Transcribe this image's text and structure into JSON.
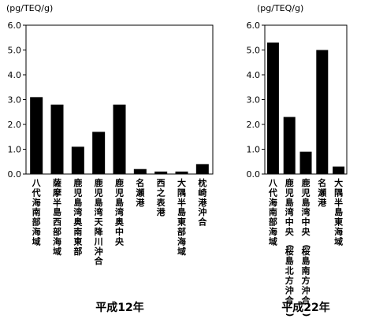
{
  "chart_data": [
    {
      "type": "bar",
      "unit_label": "(pg/TEQ/g)",
      "period_label": "平成12年",
      "ylim": [
        0,
        6
      ],
      "yticks": [
        "0.0",
        "1.0",
        "2.0",
        "3.0",
        "4.0",
        "5.0",
        "6.0"
      ],
      "categories": [
        "八代海南部海域",
        "薩摩半島西部海域",
        "鹿児島湾奥南東部",
        "鹿児島湾天降川沖合",
        "鹿児島湾奥中央",
        "名瀬港",
        "西之表港",
        "大隅半島東部海域",
        "枕崎港沖合"
      ],
      "values": [
        3.1,
        2.8,
        1.1,
        1.7,
        2.8,
        0.2,
        0.1,
        0.1,
        0.4
      ],
      "bar_color": "#000000",
      "grid": false
    },
    {
      "type": "bar",
      "unit_label": "(pg/TEQ/g)",
      "period_label": "平成22年",
      "ylim": [
        0,
        6
      ],
      "yticks": [
        "0.0",
        "1.0",
        "2.0",
        "3.0",
        "4.0",
        "5.0",
        "6.0"
      ],
      "categories": [
        "八代海南部海域",
        "鹿児島湾中央(桜島北方沖合)",
        "鹿児島湾中央(桜島南方沖合)",
        "名瀬港",
        "大隅半島東海域"
      ],
      "values": [
        5.3,
        2.3,
        0.9,
        5.0,
        0.3
      ],
      "bar_color": "#000000",
      "grid": false
    }
  ]
}
